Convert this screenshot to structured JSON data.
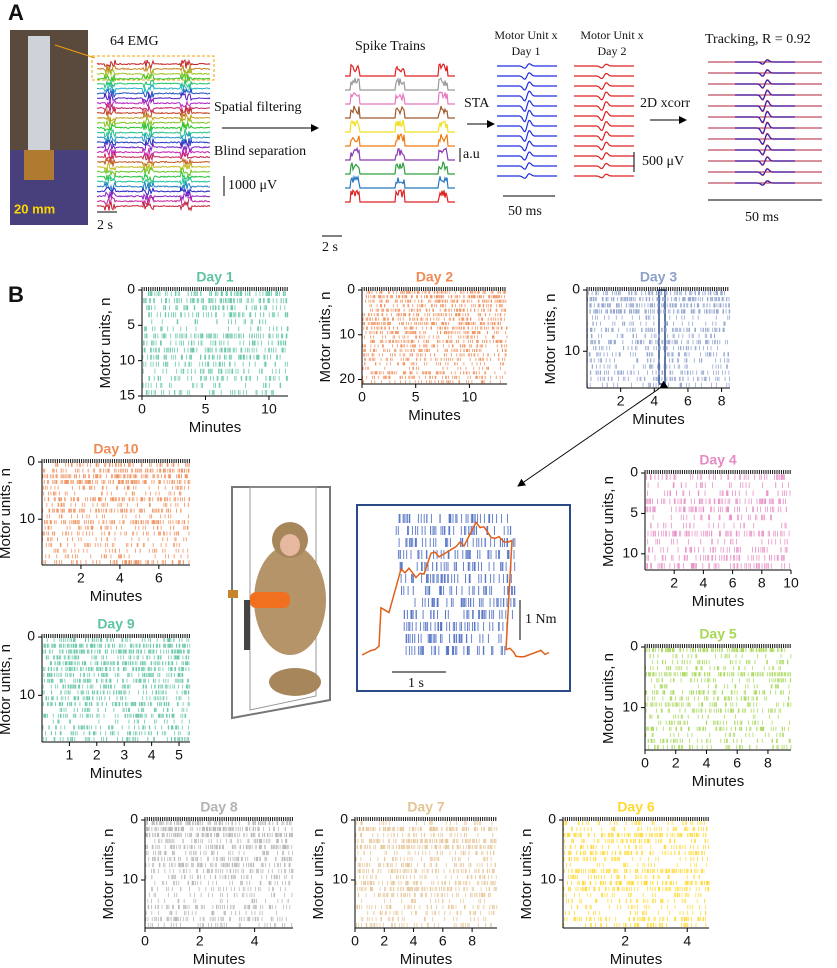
{
  "panel_a": {
    "label": "A",
    "photo_scale": "20 mm",
    "emg_title": "64 EMG",
    "emg_scale": "1000 μV",
    "emg_time": "2 s",
    "step1": "Spatial filtering",
    "step2": "Blind separation",
    "spike_title": "Spike Trains",
    "spike_scale": "a.u",
    "spike_time": "2 s",
    "sta_step": "STA",
    "day1_line1": "Motor Unit x",
    "day1_line2": "Day 1",
    "day2_line1": "Motor Unit x",
    "day2_line2": "Day 2",
    "sta_scale": "500 μV",
    "sta_time": "50 ms",
    "xcorr": "2D xcorr",
    "tracking": "Tracking, R = 0.92",
    "tracking_time": "50 ms"
  },
  "panel_b": {
    "label": "B",
    "torque_scale": "1 Nm",
    "time_scale": "1 s",
    "charts": [
      {
        "type": "raster",
        "title": "Day 1",
        "color": "#5fc4a5",
        "xlabel": "Minutes",
        "ylabel": "Motor units, n",
        "xlim": [
          0,
          11.5
        ],
        "xticks": [
          0,
          5,
          10
        ],
        "ylim": [
          0,
          15
        ],
        "yticks": [
          0,
          5,
          10,
          15
        ],
        "y_inverted": true
      },
      {
        "type": "raster",
        "title": "Day 2",
        "color": "#f08b55",
        "xlabel": "Minutes",
        "ylabel": "Motor units, n",
        "xlim": [
          0,
          13.5
        ],
        "xticks": [
          0,
          5,
          10
        ],
        "ylim": [
          0,
          21
        ],
        "yticks": [
          0,
          10,
          20
        ],
        "y_inverted": true
      },
      {
        "type": "raster",
        "title": "Day 3",
        "color": "#8da0cb",
        "xlabel": "Minutes",
        "ylabel": "Motor units, n",
        "xlim": [
          0,
          8.5
        ],
        "xticks": [
          2,
          4,
          6,
          8
        ],
        "ylim": [
          0,
          16
        ],
        "yticks": [
          0,
          10
        ],
        "y_inverted": true
      },
      {
        "type": "raster",
        "title": "Day 10",
        "color": "#f08b55",
        "xlabel": "Minutes",
        "ylabel": "Motor units, n",
        "xlim": [
          0,
          7.6
        ],
        "xticks": [
          2,
          4,
          6
        ],
        "ylim": [
          0,
          18
        ],
        "yticks": [
          0,
          10
        ],
        "y_inverted": true
      },
      {
        "type": "raster",
        "title": "Day 9",
        "color": "#5fc4a5",
        "xlabel": "Minutes",
        "ylabel": "Motor units, n",
        "xlim": [
          0,
          5.4
        ],
        "xticks": [
          1,
          2,
          3,
          4,
          5
        ],
        "ylim": [
          0,
          18
        ],
        "yticks": [
          0,
          10
        ],
        "y_inverted": true
      },
      {
        "type": "raster",
        "title": "Day 4",
        "color": "#e78ac3",
        "xlabel": "Minutes",
        "ylabel": "Motor units, n",
        "xlim": [
          0,
          10
        ],
        "xticks": [
          2,
          4,
          6,
          8,
          10
        ],
        "ylim": [
          0,
          12
        ],
        "yticks": [
          0,
          5,
          10
        ],
        "y_inverted": true
      },
      {
        "type": "raster",
        "title": "Day 5",
        "color": "#a6d854",
        "xlabel": "Minutes",
        "ylabel": "Motor units, n",
        "xlim": [
          0,
          9.5
        ],
        "xticks": [
          0,
          2,
          4,
          6,
          8
        ],
        "ylim": [
          0,
          17
        ],
        "yticks": [
          0,
          10
        ],
        "y_inverted": true
      },
      {
        "type": "raster",
        "title": "Day 8",
        "color": "#b3b3b3",
        "xlabel": "Minutes",
        "ylabel": "Motor units, n",
        "xlim": [
          0,
          5.4
        ],
        "xticks": [
          0,
          2,
          4
        ],
        "ylim": [
          0,
          18
        ],
        "yticks": [
          0,
          10
        ],
        "y_inverted": true
      },
      {
        "type": "raster",
        "title": "Day 7",
        "color": "#e5c494",
        "xlabel": "Minutes",
        "ylabel": "Motor units, n",
        "xlim": [
          0,
          9.7
        ],
        "xticks": [
          0,
          2,
          4,
          6,
          8
        ],
        "ylim": [
          0,
          18
        ],
        "yticks": [
          0,
          10
        ],
        "y_inverted": true
      },
      {
        "type": "raster",
        "title": "Day 6",
        "color": "#ffd92f",
        "xlabel": "Minutes",
        "ylabel": "Motor units, n",
        "xlim": [
          0,
          4.7
        ],
        "xticks": [
          2,
          4
        ],
        "ylim": [
          0,
          18
        ],
        "yticks": [
          0,
          10
        ],
        "y_inverted": true
      }
    ]
  }
}
